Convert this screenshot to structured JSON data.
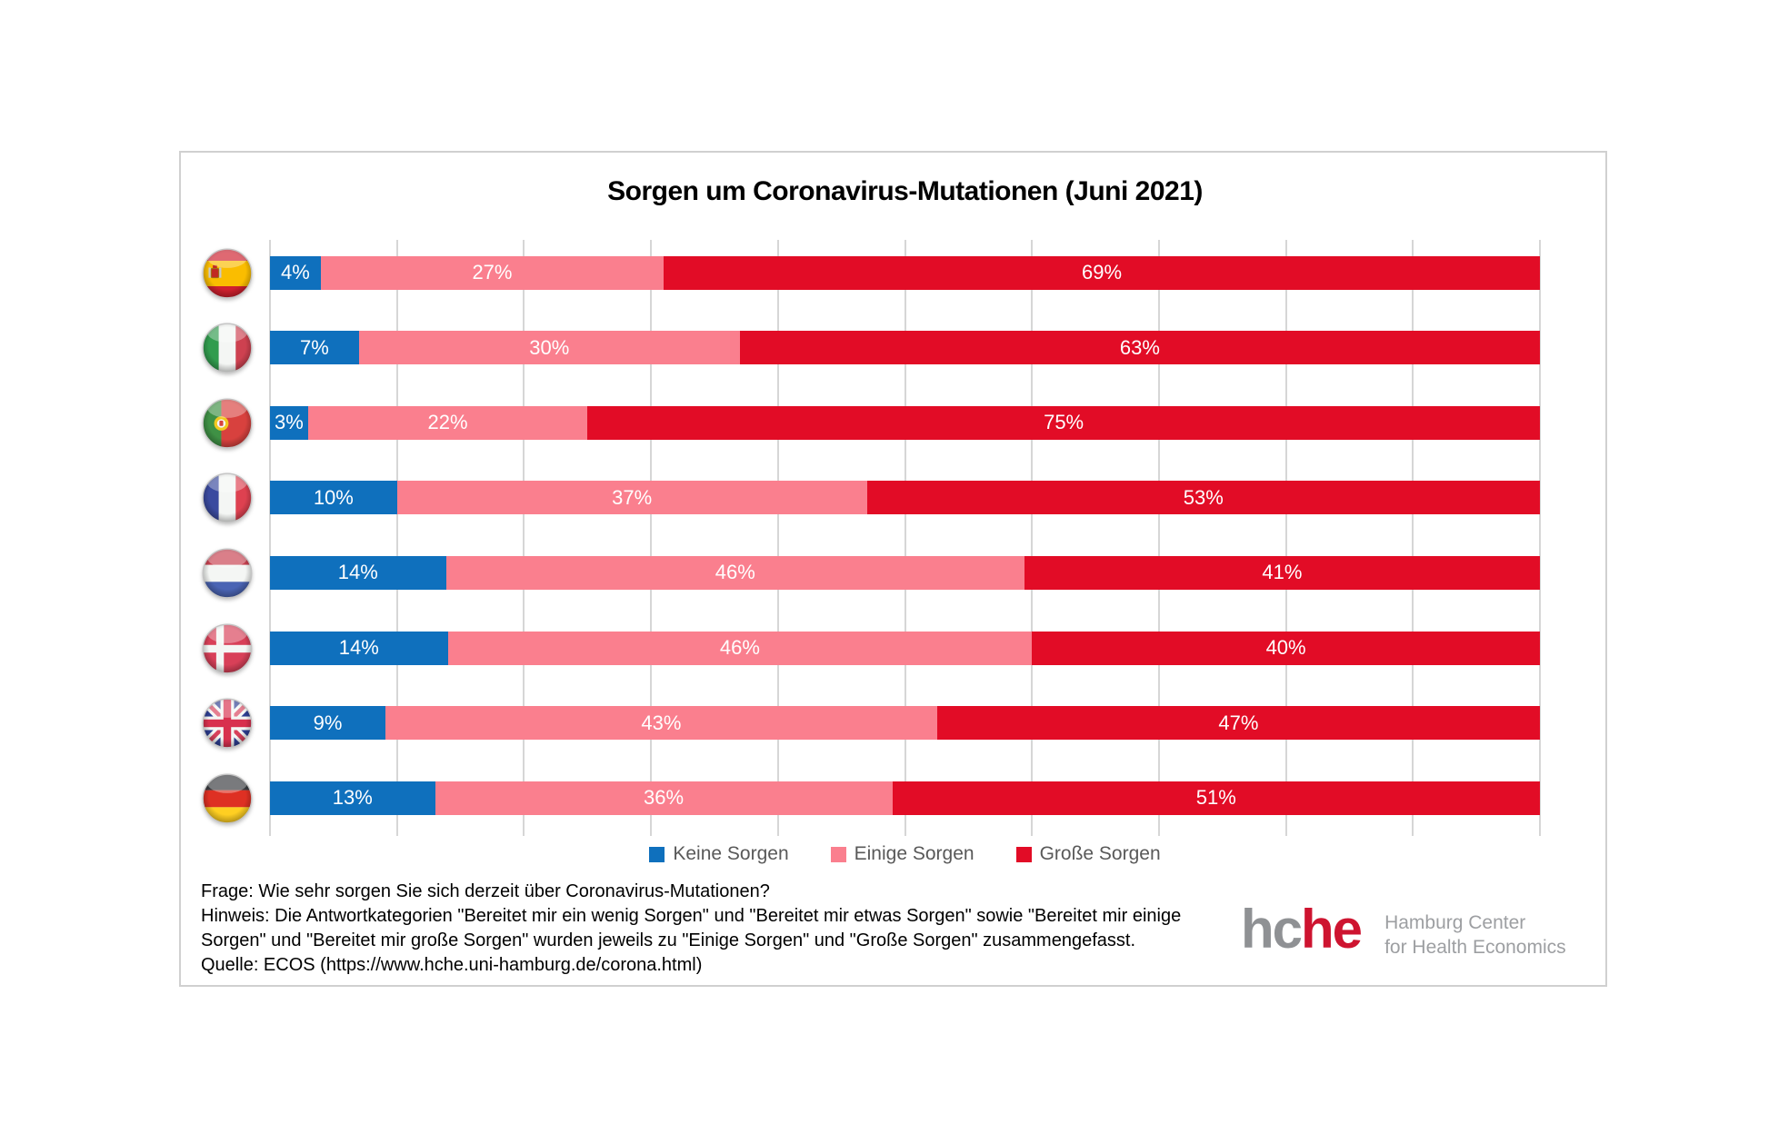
{
  "title": "Sorgen um Coronavirus-Mutationen (Juni 2021)",
  "chart_data": {
    "type": "bar",
    "orientation": "horizontal",
    "stacked": true,
    "units": "percent",
    "value_suffix": "%",
    "xlim": [
      0,
      100
    ],
    "gridline_step": 10,
    "grid": true,
    "legend_position": "bottom",
    "categories": [
      {
        "key": "spain",
        "label": "Spanien",
        "flag": "spain-flag-icon"
      },
      {
        "key": "italy",
        "label": "Italien",
        "flag": "italy-flag-icon"
      },
      {
        "key": "portugal",
        "label": "Portugal",
        "flag": "portugal-flag-icon"
      },
      {
        "key": "france",
        "label": "Frankreich",
        "flag": "france-flag-icon"
      },
      {
        "key": "netherlands",
        "label": "Niederlande",
        "flag": "netherlands-flag-icon"
      },
      {
        "key": "denmark",
        "label": "Dänemark",
        "flag": "denmark-flag-icon"
      },
      {
        "key": "uk",
        "label": "Großbritannien",
        "flag": "uk-flag-icon"
      },
      {
        "key": "germany",
        "label": "Deutschland",
        "flag": "germany-flag-icon"
      }
    ],
    "series": [
      {
        "key": "keine-sorgen",
        "name": "Keine Sorgen",
        "color": "#0F70BD",
        "values": [
          4,
          7,
          3,
          10,
          14,
          14,
          9,
          13
        ]
      },
      {
        "key": "einige-sorgen",
        "name": "Einige Sorgen",
        "color": "#FA7F8E",
        "values": [
          27,
          30,
          22,
          37,
          46,
          46,
          43,
          36
        ]
      },
      {
        "key": "grosse-sorgen",
        "name": "Große Sorgen",
        "color": "#E20C26",
        "values": [
          69,
          63,
          75,
          53,
          41,
          40,
          47,
          51
        ]
      }
    ]
  },
  "footnotes": {
    "line1": "Frage: Wie sehr sorgen Sie sich derzeit über  Coronavirus-Mutationen?",
    "line2": "Hinweis: Die Antwortkategorien \"Bereitet mir ein wenig Sorgen\" und \"Bereitet mir etwas Sorgen\" sowie \"Bereitet mir einige",
    "line3": "Sorgen\" und \"Bereitet mir große Sorgen\" wurden jeweils zu \"Einige Sorgen\" und \"Große Sorgen\" zusammengefasst.",
    "line4": "Quelle: ECOS (https://www.hche.uni-hamburg.de/corona.html)"
  },
  "logo": {
    "word_part1": "hc",
    "word_part2": "he",
    "subtitle_line1": "Hamburg Center",
    "subtitle_line2": "for Health Economics",
    "color_gray": "#8F9194",
    "color_red": "#CE1430",
    "subtitle_color": "#9D9FA2"
  },
  "colors": {
    "gridline": "#D6D6D6",
    "box_border": "#D0D0D0",
    "legend_text": "#595959",
    "bar_label": "#FFFFFF"
  }
}
